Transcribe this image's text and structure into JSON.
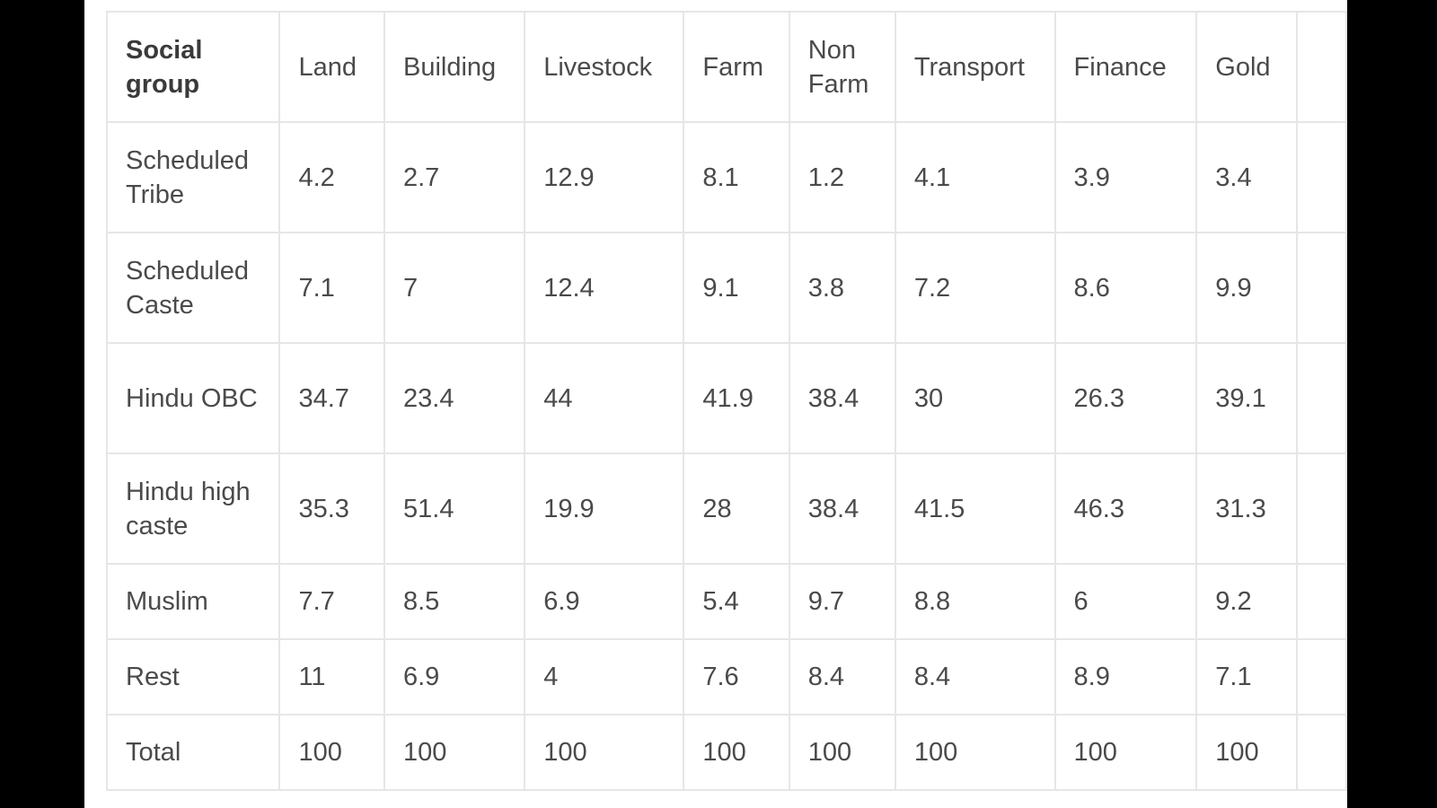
{
  "table": {
    "headers": [
      "Social group",
      "Land",
      "Building",
      "Livestock",
      "Farm",
      "Non Farm",
      "Transport",
      "Finance",
      "Gold",
      ""
    ],
    "rows": [
      {
        "group": "Scheduled Tribe",
        "values": [
          "4.2",
          "2.7",
          "12.9",
          "8.1",
          "1.2",
          "4.1",
          "3.9",
          "3.4"
        ]
      },
      {
        "group": "Scheduled Caste",
        "values": [
          "7.1",
          "7",
          "12.4",
          "9.1",
          "3.8",
          "7.2",
          "8.6",
          "9.9"
        ]
      },
      {
        "group": "Hindu OBC",
        "values": [
          "34.7",
          "23.4",
          "44",
          "41.9",
          "38.4",
          "30",
          "26.3",
          "39.1"
        ]
      },
      {
        "group": "Hindu high caste",
        "values": [
          "35.3",
          "51.4",
          "19.9",
          "28",
          "38.4",
          "41.5",
          "46.3",
          "31.3"
        ]
      },
      {
        "group": "Muslim",
        "values": [
          "7.7",
          "8.5",
          "6.9",
          "5.4",
          "9.7",
          "8.8",
          "6",
          "9.2"
        ]
      },
      {
        "group": "Rest",
        "values": [
          "11",
          "6.9",
          "4",
          "7.6",
          "8.4",
          "8.4",
          "8.9",
          "7.1"
        ]
      },
      {
        "group": "Total",
        "values": [
          "100",
          "100",
          "100",
          "100",
          "100",
          "100",
          "100",
          "100"
        ]
      }
    ]
  }
}
